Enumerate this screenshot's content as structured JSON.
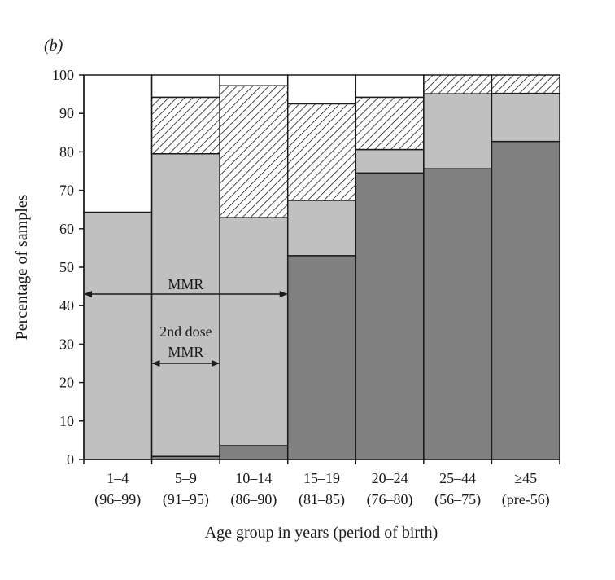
{
  "panel_label": "(b)",
  "chart_data": {
    "type": "bar",
    "stacked": true,
    "ylabel": "Percentage of samples",
    "xlabel": "Age group in years (period of birth)",
    "ylim": [
      0,
      100
    ],
    "yticks": [
      0,
      10,
      20,
      30,
      40,
      50,
      60,
      70,
      80,
      90,
      100
    ],
    "categories": [
      "1–4",
      "5–9",
      "10–14",
      "15–19",
      "20–24",
      "25–44",
      "≥45"
    ],
    "category_sublabels": [
      "(96–99)",
      "(91–95)",
      "(86–90)",
      "(81–85)",
      "(76–80)",
      "(56–75)",
      "(pre-56)"
    ],
    "series": [
      {
        "values": [
          0,
          0.8,
          3.6,
          53,
          74.5,
          75.6,
          82.7
        ],
        "color": "#808080",
        "pattern": "solid"
      },
      {
        "values": [
          64.3,
          78.7,
          59.3,
          14.4,
          6.1,
          19.5,
          12.5
        ],
        "color": "#c0c0c0",
        "pattern": "solid"
      },
      {
        "values": [
          0,
          14.7,
          34.3,
          25.1,
          13.6,
          4.9,
          4.8
        ],
        "color": "#ffffff",
        "pattern": "hatch"
      },
      {
        "values": [
          35.7,
          5.8,
          2.8,
          7.5,
          5.8,
          0,
          0
        ],
        "color": "#ffffff",
        "pattern": "solid"
      }
    ],
    "annotations": [
      {
        "text": "MMR",
        "from_category": 0,
        "to_category": 2,
        "y": 43
      },
      {
        "text_lines": [
          "2nd dose",
          "MMR"
        ],
        "from_category": 1,
        "to_category": 1,
        "y": 25
      }
    ]
  }
}
